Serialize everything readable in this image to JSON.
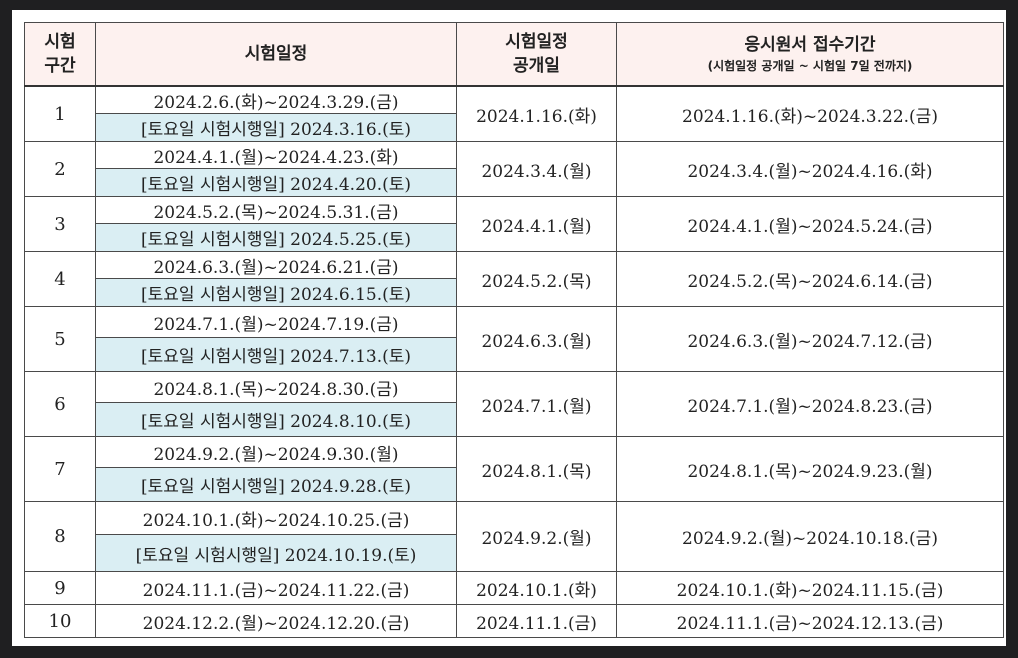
{
  "headers": {
    "section_line1": "시험",
    "section_line2": "구간",
    "exam_schedule": "시험일정",
    "announce_line1": "시험일정",
    "announce_line2": "공개일",
    "application": "응시원서 접수기간",
    "application_note": "(시험일정 공개일 ~ 시험일 7일 전까지)"
  },
  "rows": [
    {
      "section": "1",
      "period": "2024.2.6.(화)~2024.3.29.(금)",
      "saturday": "[토요일 시험시행일] 2024.3.16.(토)",
      "announce": "2024.1.16.(화)",
      "application": "2024.1.16.(화)~2024.3.22.(금)"
    },
    {
      "section": "2",
      "period": "2024.4.1.(월)~2024.4.23.(화)",
      "saturday": "[토요일 시험시행일] 2024.4.20.(토)",
      "announce": "2024.3.4.(월)",
      "application": "2024.3.4.(월)~2024.4.16.(화)"
    },
    {
      "section": "3",
      "period": "2024.5.2.(목)~2024.5.31.(금)",
      "saturday": "[토요일 시험시행일] 2024.5.25.(토)",
      "announce": "2024.4.1.(월)",
      "application": "2024.4.1.(월)~2024.5.24.(금)"
    },
    {
      "section": "4",
      "period": "2024.6.3.(월)~2024.6.21.(금)",
      "saturday": "[토요일 시험시행일] 2024.6.15.(토)",
      "announce": "2024.5.2.(목)",
      "application": "2024.5.2.(목)~2024.6.14.(금)"
    },
    {
      "section": "5",
      "period": "2024.7.1.(월)~2024.7.19.(금)",
      "saturday": "[토요일 시험시행일] 2024.7.13.(토)",
      "announce": "2024.6.3.(월)",
      "application": "2024.6.3.(월)~2024.7.12.(금)"
    },
    {
      "section": "6",
      "period": "2024.8.1.(목)~2024.8.30.(금)",
      "saturday": "[토요일 시험시행일] 2024.8.10.(토)",
      "announce": "2024.7.1.(월)",
      "application": "2024.7.1.(월)~2024.8.23.(금)"
    },
    {
      "section": "7",
      "period": "2024.9.2.(월)~2024.9.30.(월)",
      "saturday": "[토요일 시험시행일] 2024.9.28.(토)",
      "announce": "2024.8.1.(목)",
      "application": "2024.8.1.(목)~2024.9.23.(월)"
    },
    {
      "section": "8",
      "period": "2024.10.1.(화)~2024.10.25.(금)",
      "saturday": "[토요일 시험시행일] 2024.10.19.(토)",
      "announce": "2024.9.2.(월)",
      "application": "2024.9.2.(월)~2024.10.18.(금)"
    },
    {
      "section": "9",
      "period": "2024.11.1.(금)~2024.11.22.(금)",
      "announce": "2024.10.1.(화)",
      "application": "2024.10.1.(화)~2024.11.15.(금)"
    },
    {
      "section": "10",
      "period": "2024.12.2.(월)~2024.12.20.(금)",
      "announce": "2024.11.1.(금)",
      "application": "2024.11.1.(금)~2024.12.13.(금)"
    }
  ]
}
